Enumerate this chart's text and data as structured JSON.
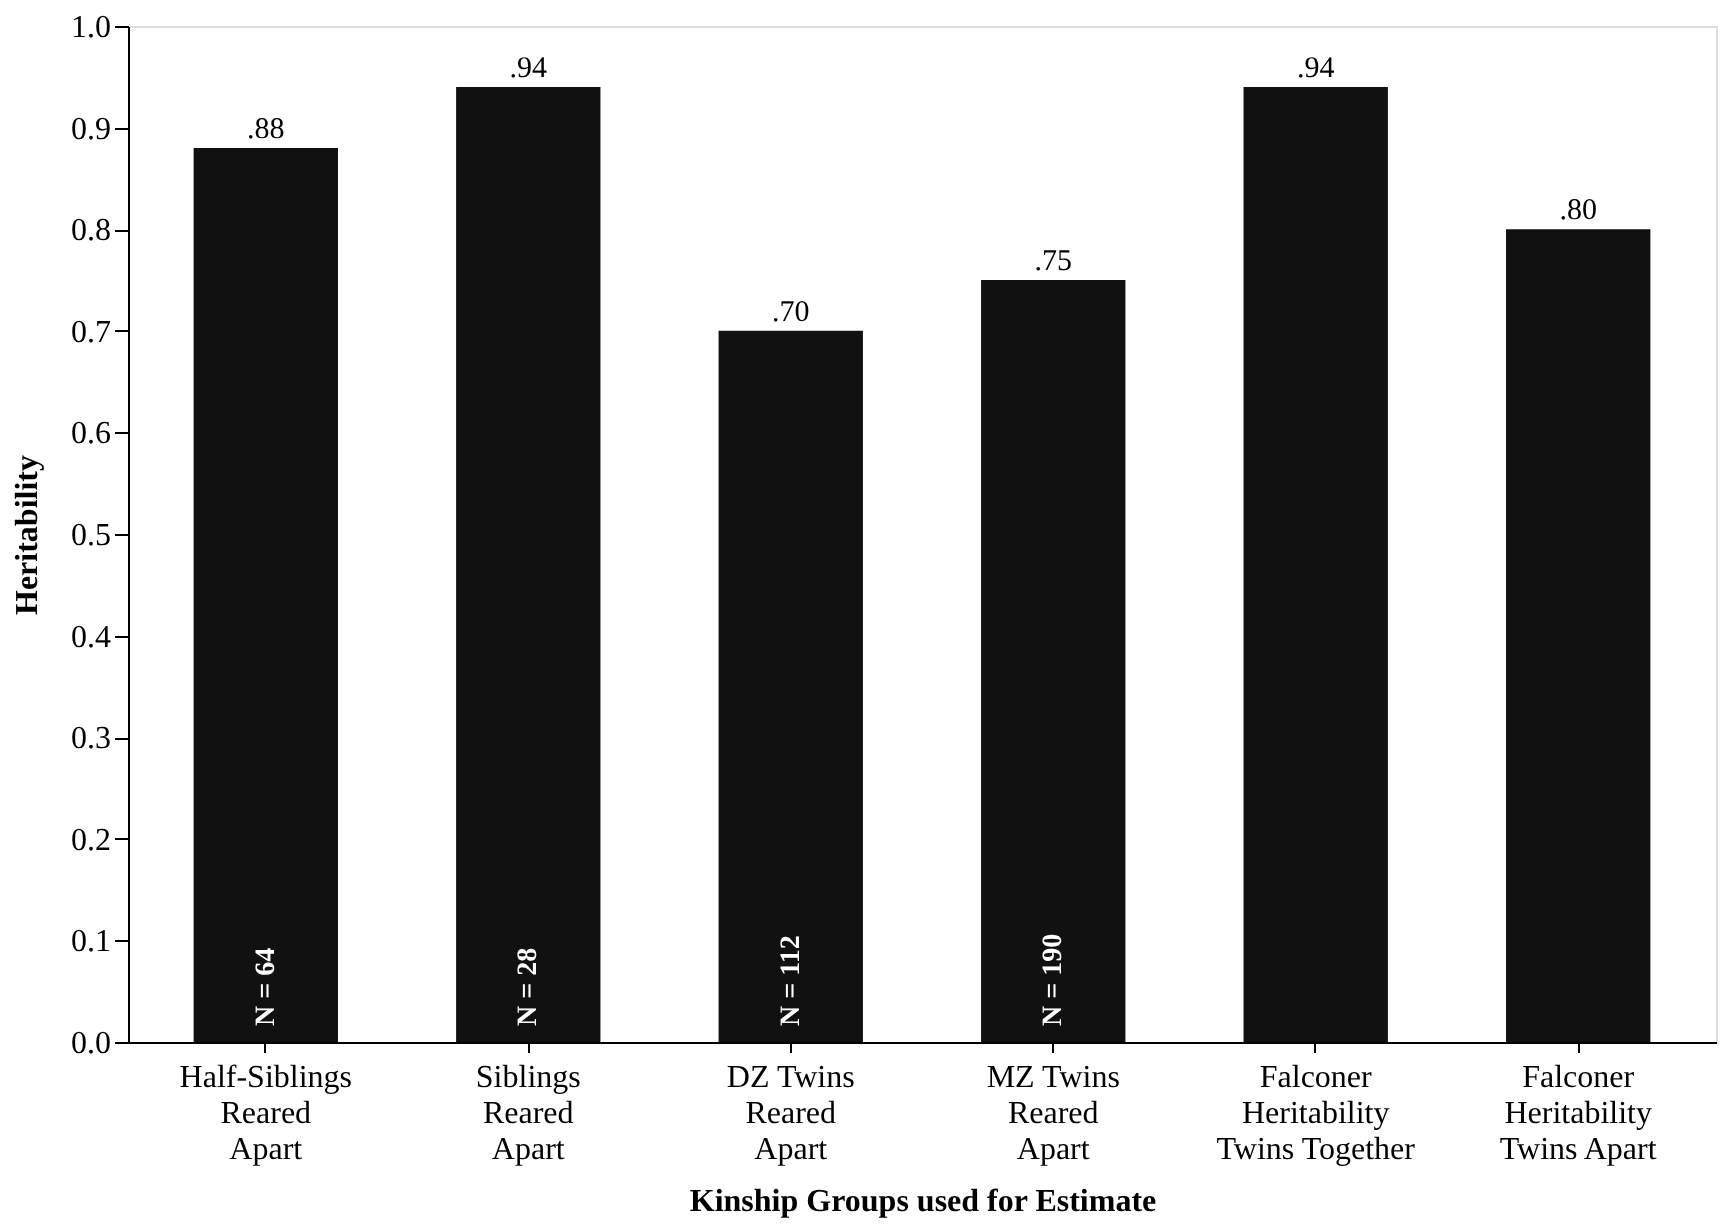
{
  "chart_data": {
    "type": "bar",
    "xlabel": "Kinship Groups used for Estimate",
    "ylabel": "Heritability",
    "categories": [
      "Half-Siblings\nReared\nApart",
      "Siblings\nReared\nApart",
      "DZ Twins\nReared\nApart",
      "MZ Twins\nReared\nApart",
      "Falconer\nHeritability\nTwins Together",
      "Falconer\nHeritability\nTwins Apart"
    ],
    "values": [
      0.88,
      0.94,
      0.7,
      0.75,
      0.94,
      0.8
    ],
    "value_labels": [
      ".88",
      ".94",
      ".70",
      ".75",
      ".94",
      ".80"
    ],
    "color": "#111111",
    "ylim": [
      0,
      1.0
    ],
    "yticks": [
      {
        "value": 0,
        "label": "0.0"
      },
      {
        "value": 0.1,
        "label": "0.1"
      },
      {
        "value": 0.2,
        "label": "0.2"
      },
      {
        "value": 0.3,
        "label": "0.3"
      },
      {
        "value": 0.4,
        "label": "0.4"
      },
      {
        "value": 0.5,
        "label": "0.5"
      },
      {
        "value": 0.6,
        "label": "0.6"
      },
      {
        "value": 0.7,
        "label": "0.7"
      },
      {
        "value": 0.8,
        "label": "0.8"
      },
      {
        "value": 0.9,
        "label": "0.9"
      },
      {
        "value": 1.0,
        "label": "1.0"
      }
    ],
    "annotations": [
      "N = 64",
      "N = 28",
      "N = 112",
      "N = 190"
    ],
    "grid": false
  }
}
